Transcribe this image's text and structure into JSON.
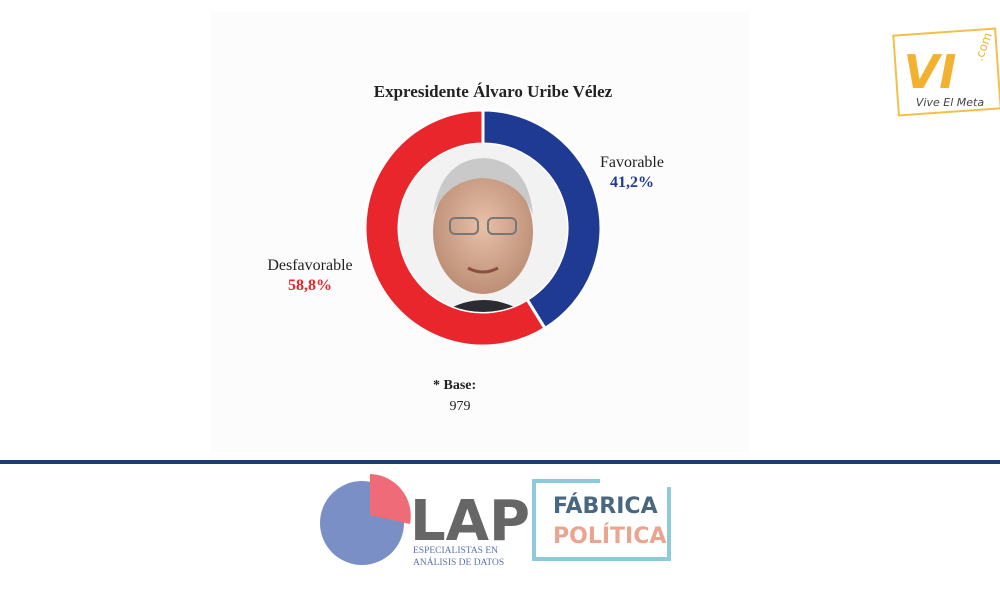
{
  "chart_data": {
    "type": "donut",
    "title": "Expresidente Álvaro Uribe Vélez",
    "categories": [
      "Favorable",
      "Desfavorable"
    ],
    "values": [
      41.2,
      58.8
    ],
    "value_labels": [
      "41,2%",
      "58,8%"
    ],
    "colors": [
      "#1f3a93",
      "#e8262c"
    ],
    "base_label": "* Base:",
    "base_value": 979
  },
  "watermark": {
    "brand": "VI",
    "domain": ".com",
    "slogan": "Vive El Meta"
  },
  "footer": {
    "lap": {
      "name": "LAP",
      "tagline": [
        "ESPECIALISTAS EN",
        "ANÁLISIS DE DATOS"
      ]
    },
    "fabrica": [
      "FÁBRICA",
      "POLÍTICA"
    ]
  }
}
